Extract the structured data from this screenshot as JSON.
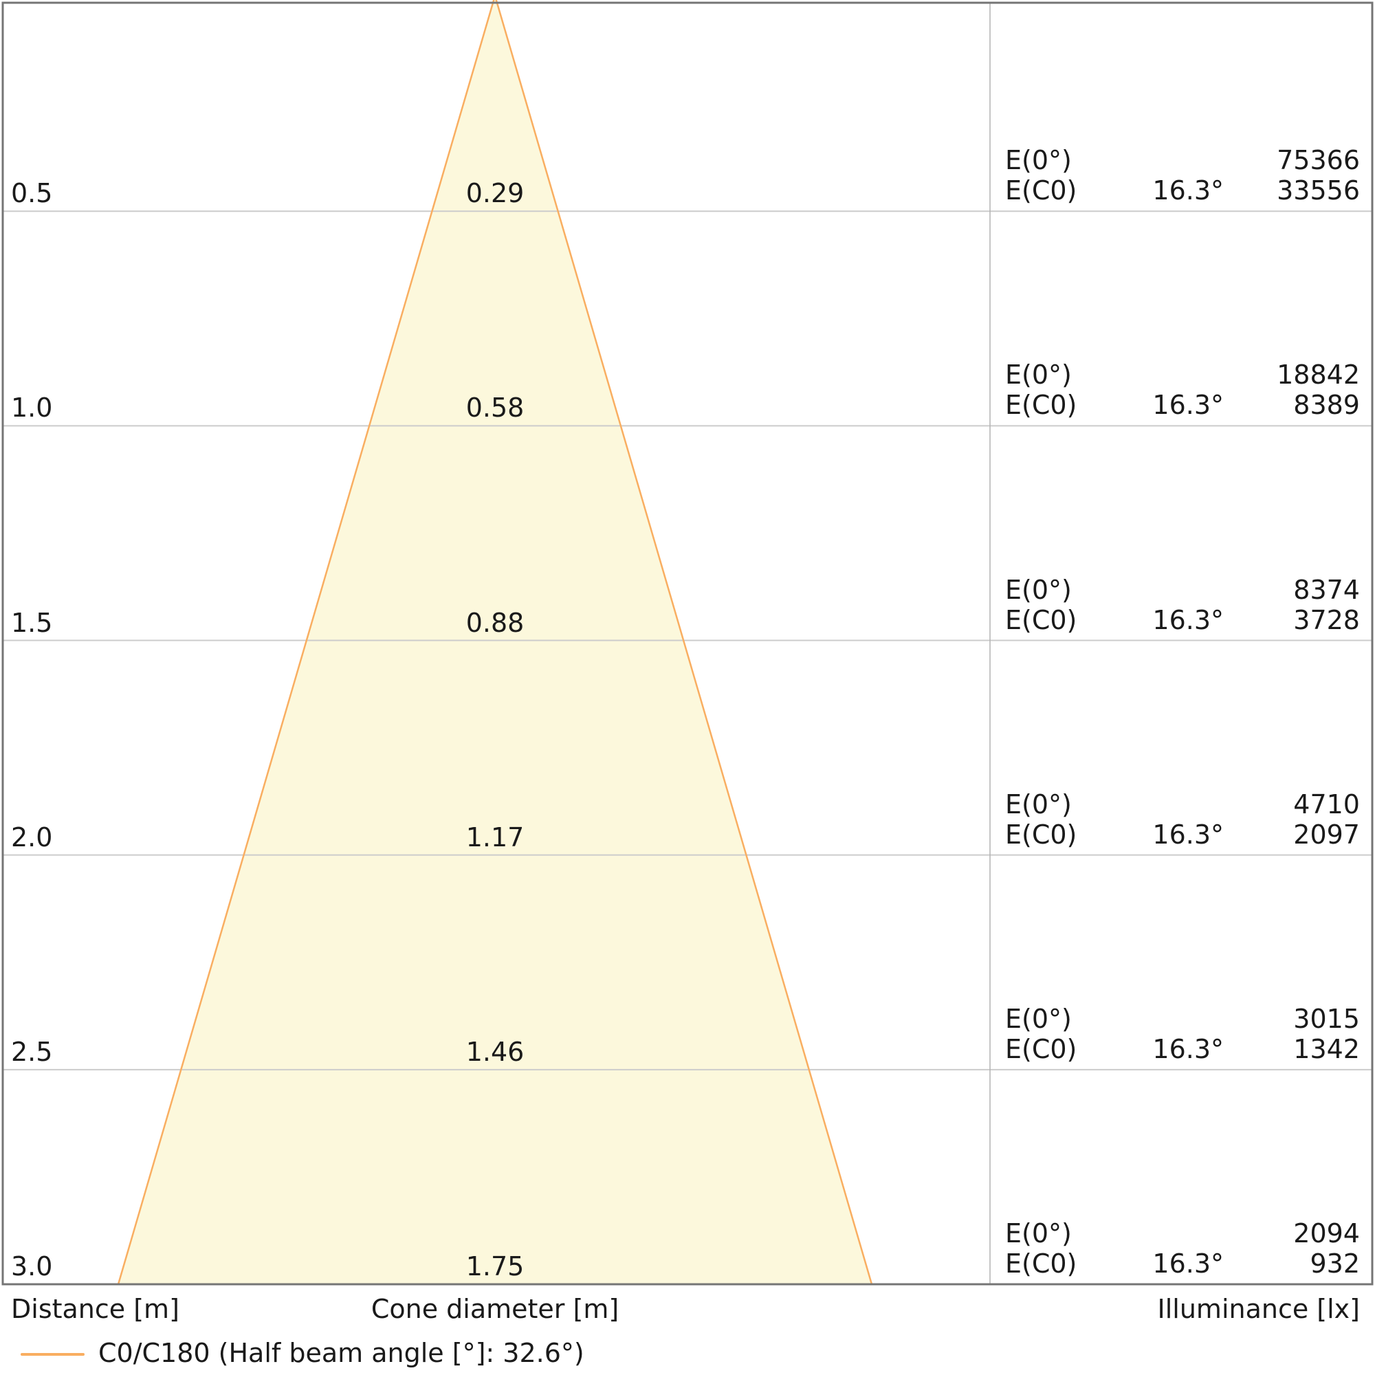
{
  "chart_data": {
    "type": "area",
    "title": "",
    "description": "Light beam cone diagram: distance vs cone diameter with illuminance table",
    "distances_m": [
      0.5,
      1.0,
      1.5,
      2.0,
      2.5,
      3.0
    ],
    "cone_diameters_m": [
      0.29,
      0.58,
      0.88,
      1.17,
      1.46,
      1.75
    ],
    "e0_illuminance_lx": [
      75366,
      18842,
      8374,
      4710,
      3015,
      2094
    ],
    "ec0_illuminance_lx": [
      33556,
      8389,
      3728,
      2097,
      1342,
      932
    ],
    "half_beam_angle_deg": 32.6,
    "table_half_angle_deg": 16.3,
    "legend_position": "bottom-left",
    "grid": true,
    "rows": [
      {
        "distance": "0.5",
        "cone_diameter": "0.29",
        "e0": "75366",
        "half_angle": "16.3°",
        "ec0": "33556"
      },
      {
        "distance": "1.0",
        "cone_diameter": "0.58",
        "e0": "18842",
        "half_angle": "16.3°",
        "ec0": "8389"
      },
      {
        "distance": "1.5",
        "cone_diameter": "0.88",
        "e0": "8374",
        "half_angle": "16.3°",
        "ec0": "3728"
      },
      {
        "distance": "2.0",
        "cone_diameter": "1.17",
        "e0": "4710",
        "half_angle": "16.3°",
        "ec0": "2097"
      },
      {
        "distance": "2.5",
        "cone_diameter": "1.46",
        "e0": "3015",
        "half_angle": "16.3°",
        "ec0": "1342"
      },
      {
        "distance": "3.0",
        "cone_diameter": "1.75",
        "e0": "2094",
        "half_angle": "16.3°",
        "ec0": "932"
      }
    ],
    "e0_label": "E(0°)",
    "ec0_label": "E(C0)"
  },
  "axis_labels": {
    "distance": "Distance [m]",
    "cone_diameter": "Cone diameter [m]",
    "illuminance": "Illuminance [lx]"
  },
  "legend": {
    "label": "C0/C180 (Half beam angle [°]: 32.6°)"
  },
  "colors": {
    "cone_fill": "#fcf8dc",
    "cone_stroke": "#f9ae61",
    "gridline": "#cccccc",
    "divider": "#b3b3b3",
    "border": "#757575",
    "text": "#1a1a1a"
  }
}
